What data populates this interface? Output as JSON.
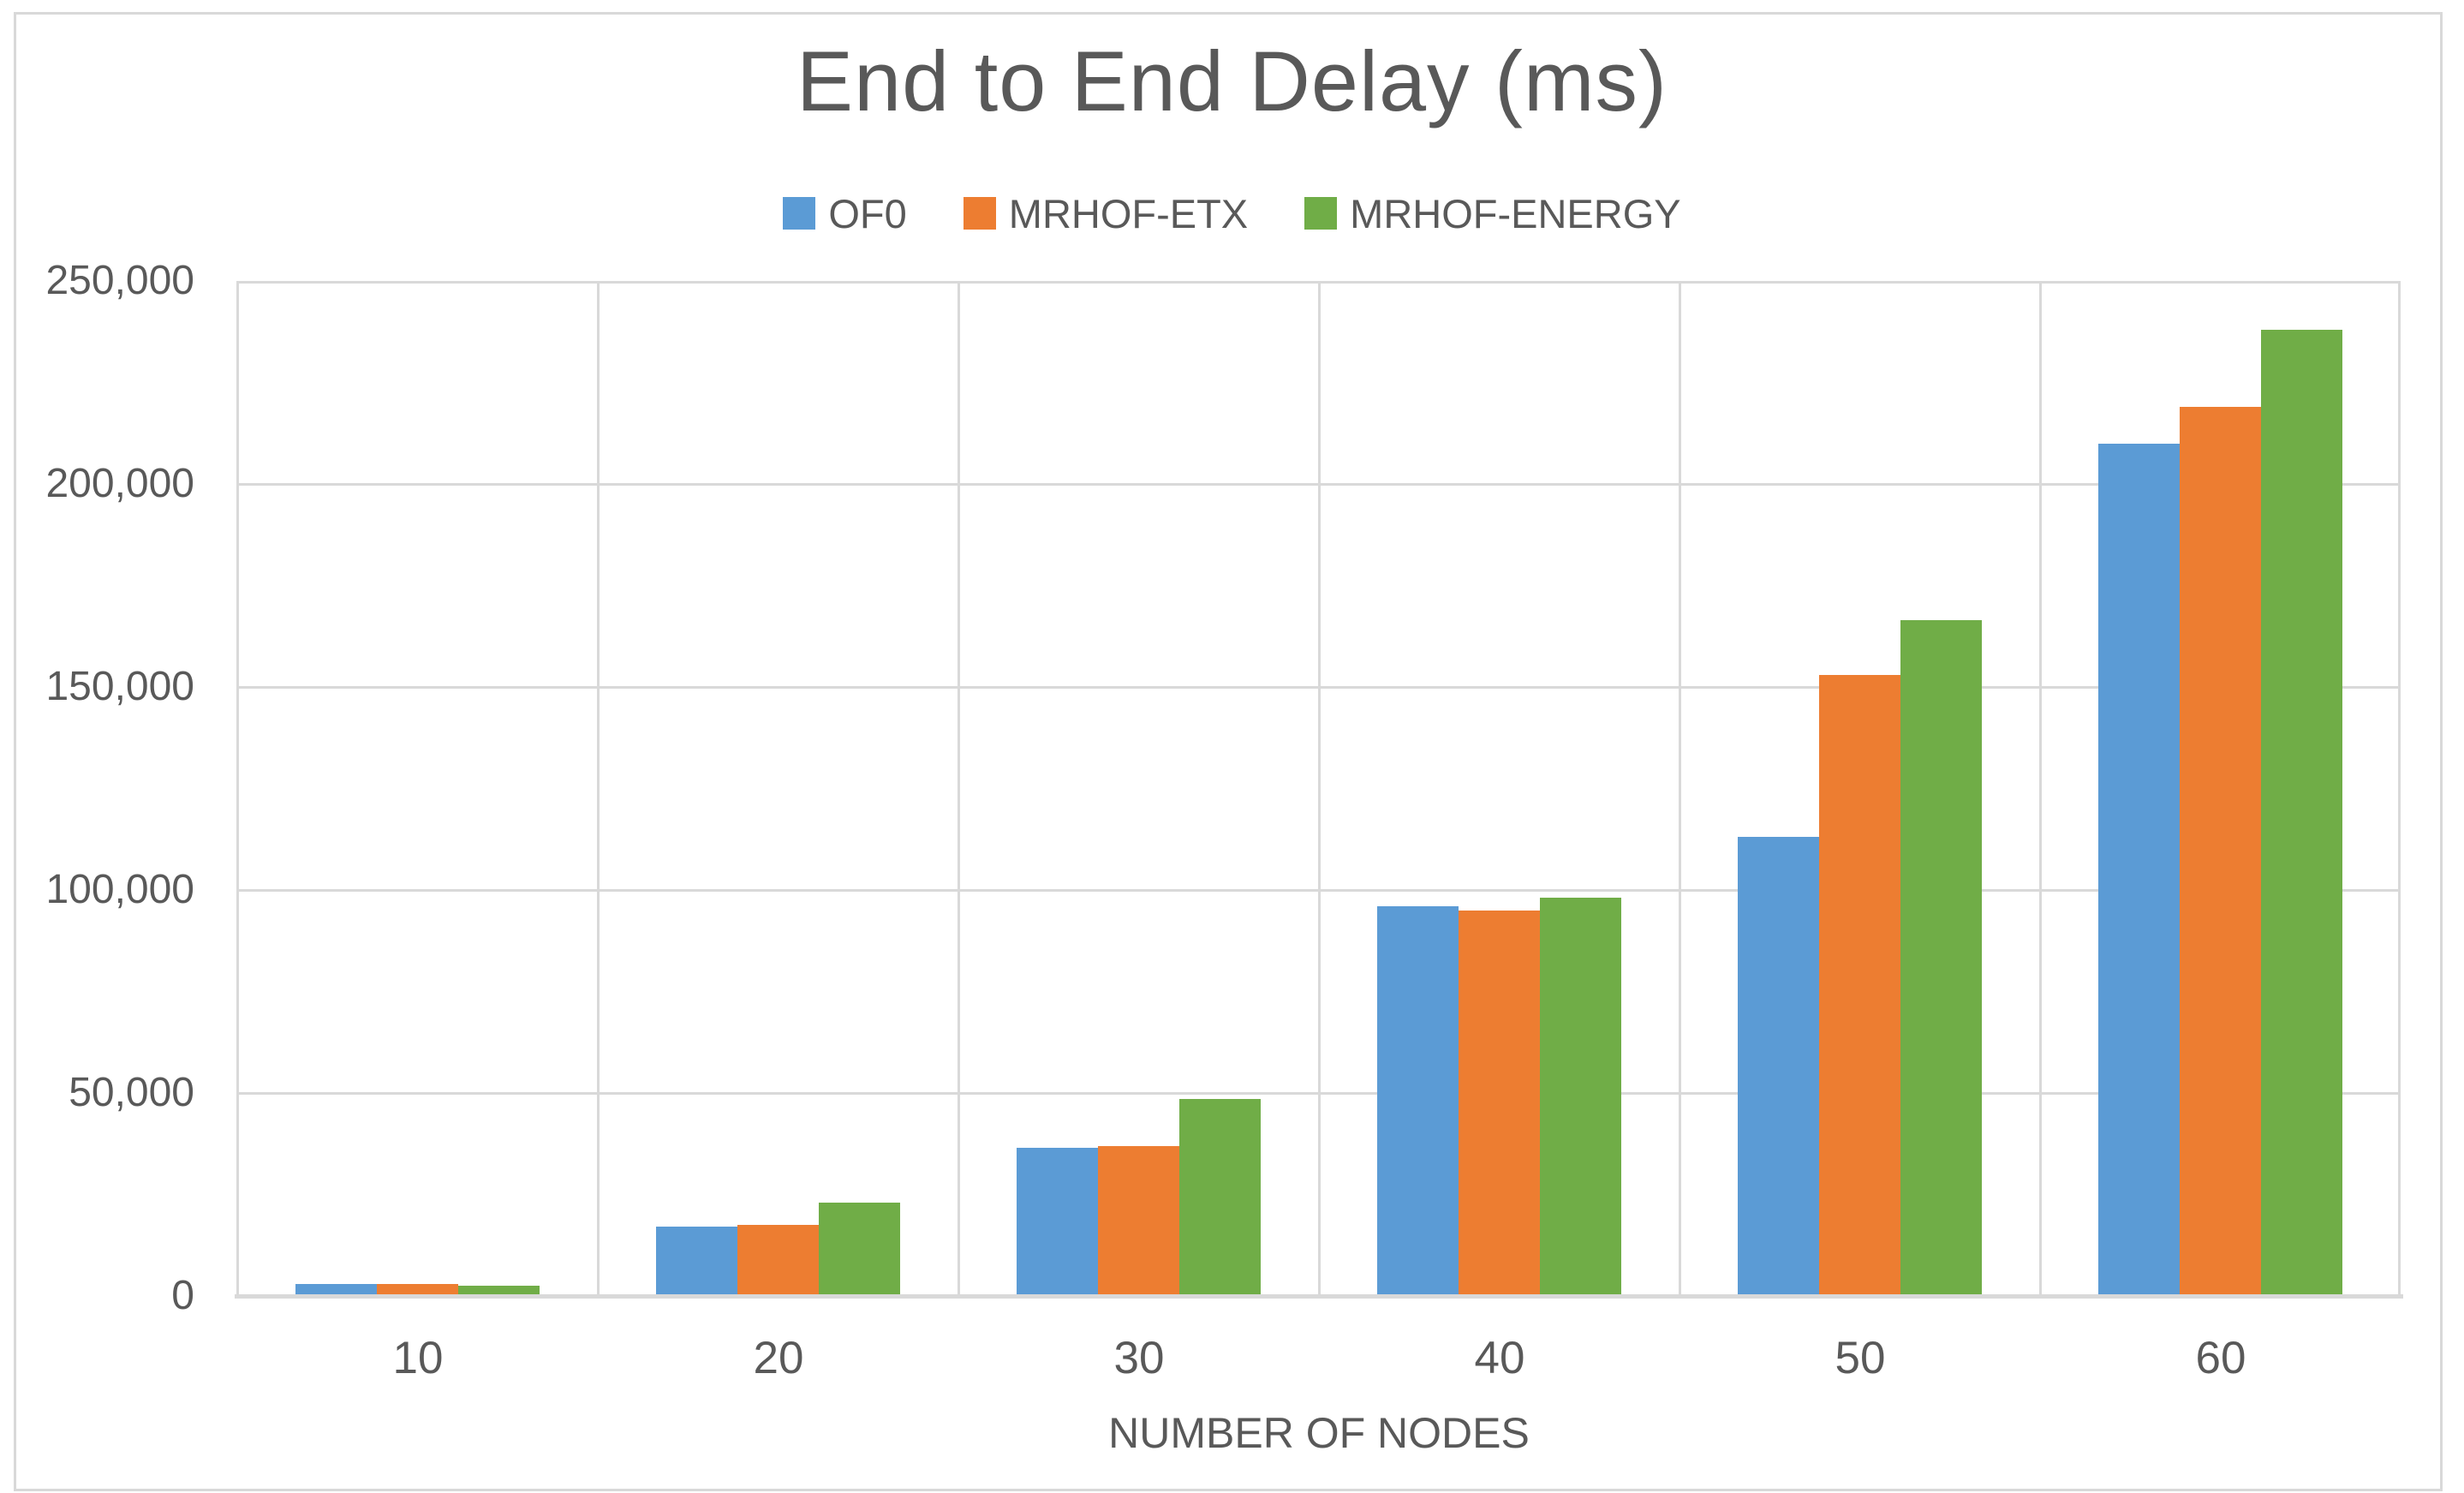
{
  "chart_data": {
    "type": "bar",
    "title": "End to End Delay (ms)",
    "xlabel": "NUMBER OF NODES",
    "ylabel": "",
    "categories": [
      "10",
      "20",
      "30",
      "40",
      "50",
      "60"
    ],
    "series": [
      {
        "name": "OF0",
        "color": "#5B9BD5",
        "values": [
          3000,
          17000,
          36500,
          96000,
          113000,
          210000
        ]
      },
      {
        "name": "MRHOF-ETX",
        "color": "#ED7D31",
        "values": [
          3000,
          17500,
          37000,
          95000,
          153000,
          219000
        ]
      },
      {
        "name": "MRHOF-ENERGY",
        "color": "#70AD47",
        "values": [
          2600,
          23000,
          48500,
          98000,
          166500,
          238000
        ]
      }
    ],
    "ylim": [
      0,
      250000
    ],
    "ytick_step": 50000,
    "ytick_labels": [
      "0",
      "50,000",
      "100,000",
      "150,000",
      "200,000",
      "250,000"
    ],
    "grid": true,
    "legend_position": "top",
    "grid_color": "#D9D9D9",
    "axis_color": "#D9D9D9",
    "text_color": "#595959"
  }
}
